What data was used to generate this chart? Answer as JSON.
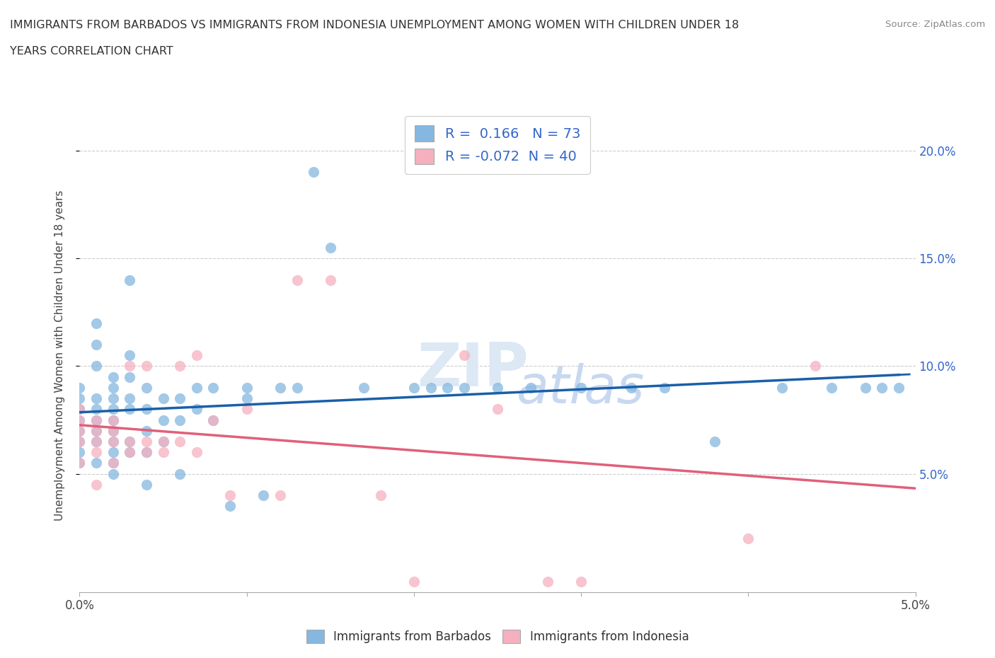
{
  "title_line1": "IMMIGRANTS FROM BARBADOS VS IMMIGRANTS FROM INDONESIA UNEMPLOYMENT AMONG WOMEN WITH CHILDREN UNDER 18",
  "title_line2": "YEARS CORRELATION CHART",
  "source": "Source: ZipAtlas.com",
  "ylabel": "Unemployment Among Women with Children Under 18 years",
  "y_ticks": [
    0.05,
    0.1,
    0.15,
    0.2
  ],
  "y_tick_labels": [
    "5.0%",
    "10.0%",
    "15.0%",
    "20.0%"
  ],
  "x_range": [
    0.0,
    0.05
  ],
  "y_range": [
    -0.005,
    0.215
  ],
  "barbados_color": "#85b7e0",
  "indonesia_color": "#f5b0c0",
  "barbados_R": 0.166,
  "barbados_N": 73,
  "indonesia_R": -0.072,
  "indonesia_N": 40,
  "trend_barbados_color": "#1a5fa8",
  "trend_indonesia_color": "#e0607a",
  "watermark_zip": "ZIP",
  "watermark_atlas": "atlas",
  "legend_label_barbados": "Immigrants from Barbados",
  "legend_label_indonesia": "Immigrants from Indonesia",
  "barbados_x": [
    0.0,
    0.0,
    0.0,
    0.0,
    0.0,
    0.0,
    0.0,
    0.0,
    0.001,
    0.001,
    0.001,
    0.001,
    0.001,
    0.001,
    0.001,
    0.001,
    0.001,
    0.002,
    0.002,
    0.002,
    0.002,
    0.002,
    0.002,
    0.002,
    0.002,
    0.002,
    0.002,
    0.003,
    0.003,
    0.003,
    0.003,
    0.003,
    0.003,
    0.003,
    0.004,
    0.004,
    0.004,
    0.004,
    0.004,
    0.005,
    0.005,
    0.005,
    0.006,
    0.006,
    0.006,
    0.007,
    0.007,
    0.008,
    0.008,
    0.009,
    0.01,
    0.01,
    0.011,
    0.012,
    0.013,
    0.014,
    0.015,
    0.017,
    0.02,
    0.021,
    0.022,
    0.023,
    0.025,
    0.027,
    0.03,
    0.033,
    0.035,
    0.038,
    0.042,
    0.045,
    0.047,
    0.048,
    0.049
  ],
  "barbados_y": [
    0.07,
    0.075,
    0.08,
    0.085,
    0.065,
    0.06,
    0.055,
    0.09,
    0.07,
    0.075,
    0.08,
    0.085,
    0.065,
    0.12,
    0.1,
    0.055,
    0.11,
    0.07,
    0.075,
    0.08,
    0.085,
    0.06,
    0.065,
    0.09,
    0.095,
    0.055,
    0.05,
    0.06,
    0.065,
    0.08,
    0.085,
    0.095,
    0.105,
    0.14,
    0.07,
    0.08,
    0.09,
    0.045,
    0.06,
    0.065,
    0.075,
    0.085,
    0.075,
    0.085,
    0.05,
    0.08,
    0.09,
    0.075,
    0.09,
    0.035,
    0.085,
    0.09,
    0.04,
    0.09,
    0.09,
    0.19,
    0.155,
    0.09,
    0.09,
    0.09,
    0.09,
    0.09,
    0.09,
    0.09,
    0.09,
    0.09,
    0.09,
    0.065,
    0.09,
    0.09,
    0.09,
    0.09,
    0.09
  ],
  "indonesia_x": [
    0.0,
    0.0,
    0.0,
    0.0,
    0.0,
    0.001,
    0.001,
    0.001,
    0.001,
    0.001,
    0.002,
    0.002,
    0.002,
    0.002,
    0.003,
    0.003,
    0.003,
    0.004,
    0.004,
    0.004,
    0.005,
    0.005,
    0.006,
    0.006,
    0.007,
    0.007,
    0.008,
    0.009,
    0.01,
    0.012,
    0.013,
    0.015,
    0.018,
    0.02,
    0.023,
    0.025,
    0.028,
    0.03,
    0.04,
    0.044
  ],
  "indonesia_y": [
    0.065,
    0.07,
    0.075,
    0.055,
    0.08,
    0.06,
    0.065,
    0.07,
    0.075,
    0.045,
    0.065,
    0.07,
    0.055,
    0.075,
    0.06,
    0.065,
    0.1,
    0.06,
    0.065,
    0.1,
    0.06,
    0.065,
    0.065,
    0.1,
    0.06,
    0.105,
    0.075,
    0.04,
    0.08,
    0.04,
    0.14,
    0.14,
    0.04,
    0.0,
    0.105,
    0.08,
    0.0,
    0.0,
    0.02,
    0.1
  ]
}
